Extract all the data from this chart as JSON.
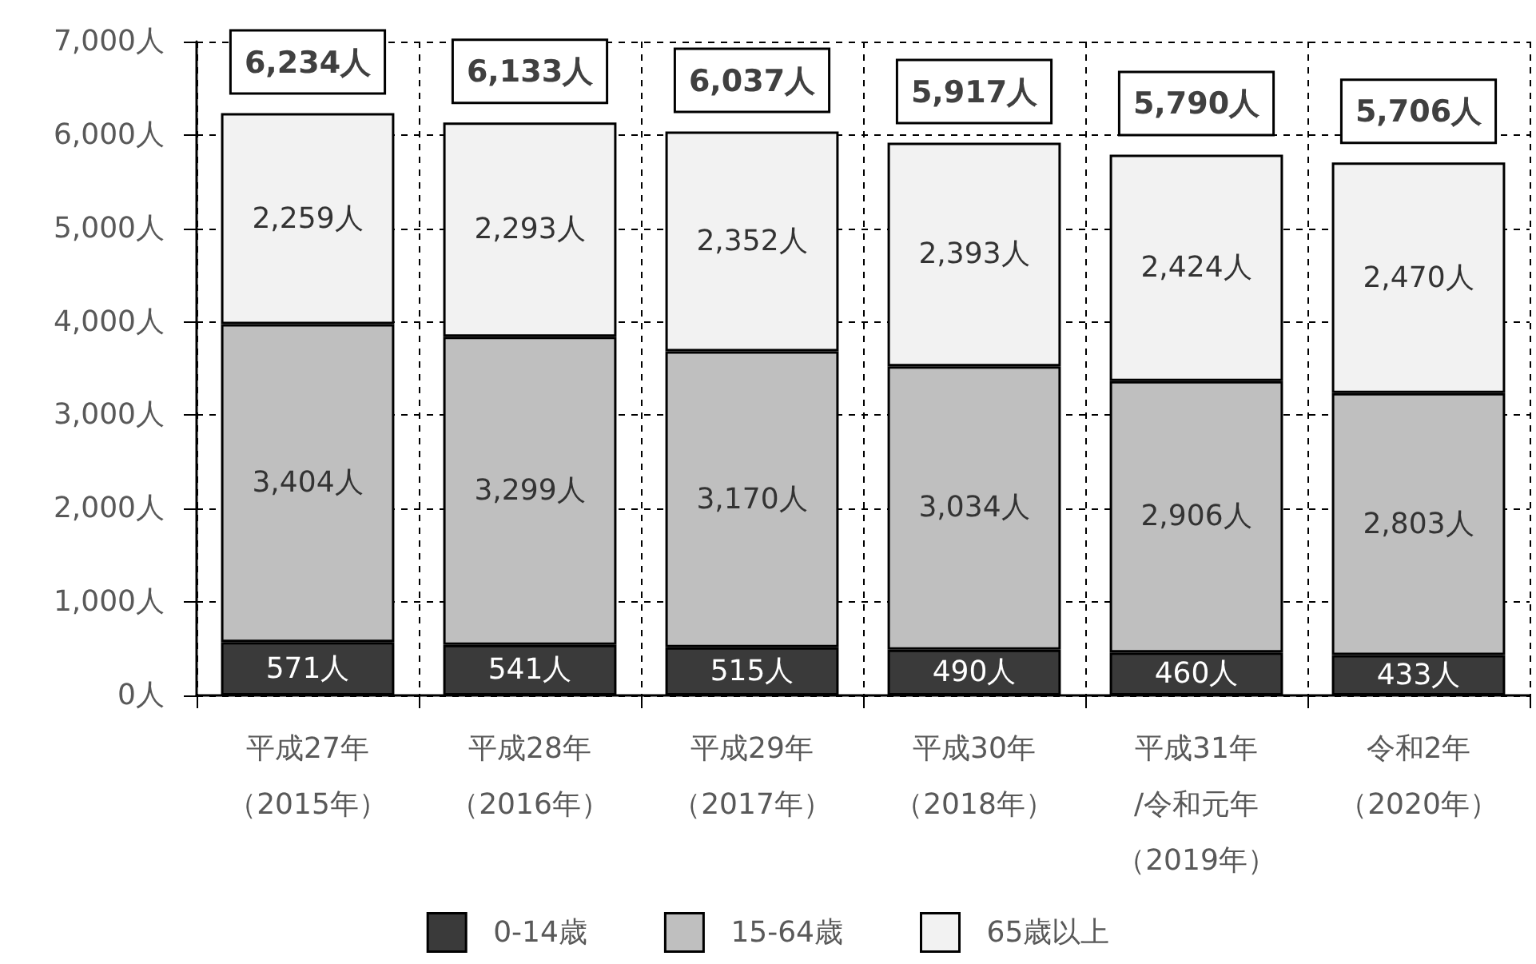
{
  "chart_data": {
    "type": "bar",
    "stacked": true,
    "categories": [
      "平成27年（2015年）",
      "平成28年（2016年）",
      "平成29年（2017年）",
      "平成30年（2018年）",
      "平成31年/令和元年（2019年）",
      "令和2年（2020年）"
    ],
    "series": [
      {
        "name": "0-14歳",
        "color": "#3a3a3a",
        "values": [
          571,
          541,
          515,
          490,
          460,
          433
        ],
        "value_labels": [
          "571人",
          "541人",
          "515人",
          "490人",
          "460人",
          "433人"
        ]
      },
      {
        "name": "15-64歳",
        "color": "#bfbfbf",
        "values": [
          3404,
          3299,
          3170,
          3034,
          2906,
          2803
        ],
        "value_labels": [
          "3,404人",
          "3,299人",
          "3,170人",
          "3,034人",
          "2,906人",
          "2,803人"
        ]
      },
      {
        "name": "65歳以上",
        "color": "#f2f2f2",
        "values": [
          2259,
          2293,
          2352,
          2393,
          2424,
          2470
        ],
        "value_labels": [
          "2,259人",
          "2,293人",
          "2,352人",
          "2,393人",
          "2,424人",
          "2,470人"
        ]
      }
    ],
    "totals": [
      "6,234人",
      "6,133人",
      "6,037人",
      "5,917人",
      "5,790人",
      "5,706人"
    ],
    "ylim": [
      0,
      7000
    ],
    "yticks": [
      {
        "value": 0,
        "label": "0人"
      },
      {
        "value": 1000,
        "label": "1,000人"
      },
      {
        "value": 2000,
        "label": "2,000人"
      },
      {
        "value": 3000,
        "label": "3,000人"
      },
      {
        "value": 4000,
        "label": "4,000人"
      },
      {
        "value": 5000,
        "label": "5,000人"
      },
      {
        "value": 6000,
        "label": "6,000人"
      },
      {
        "value": 7000,
        "label": "7,000人"
      }
    ],
    "grid": true,
    "legend": "bottom"
  }
}
